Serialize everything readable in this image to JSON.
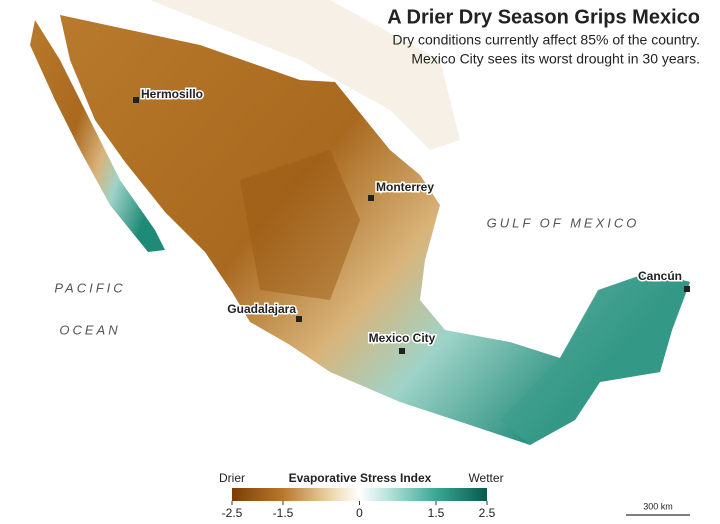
{
  "header": {
    "title": "A Drier Dry Season Grips Mexico",
    "subtitle": [
      "Dry conditions currently affect 85% of the country.",
      "Mexico City sees its worst drought in 30 years."
    ]
  },
  "map": {
    "cities": [
      "Hermosillo",
      "Monterrey",
      "Cancún",
      "Guadalajara",
      "Mexico City"
    ],
    "seas": {
      "gulf": "GULF OF MEXICO",
      "pacific": [
        "PACIFIC",
        "OCEAN"
      ]
    }
  },
  "legend": {
    "title": "Evaporative Stress Index",
    "low_label": "Drier",
    "high_label": "Wetter",
    "lim": [
      -2.5,
      2.5
    ],
    "ticks": [
      -2.5,
      -1.5,
      0,
      1.5,
      2.5
    ]
  },
  "scale_bar": "300 km"
}
